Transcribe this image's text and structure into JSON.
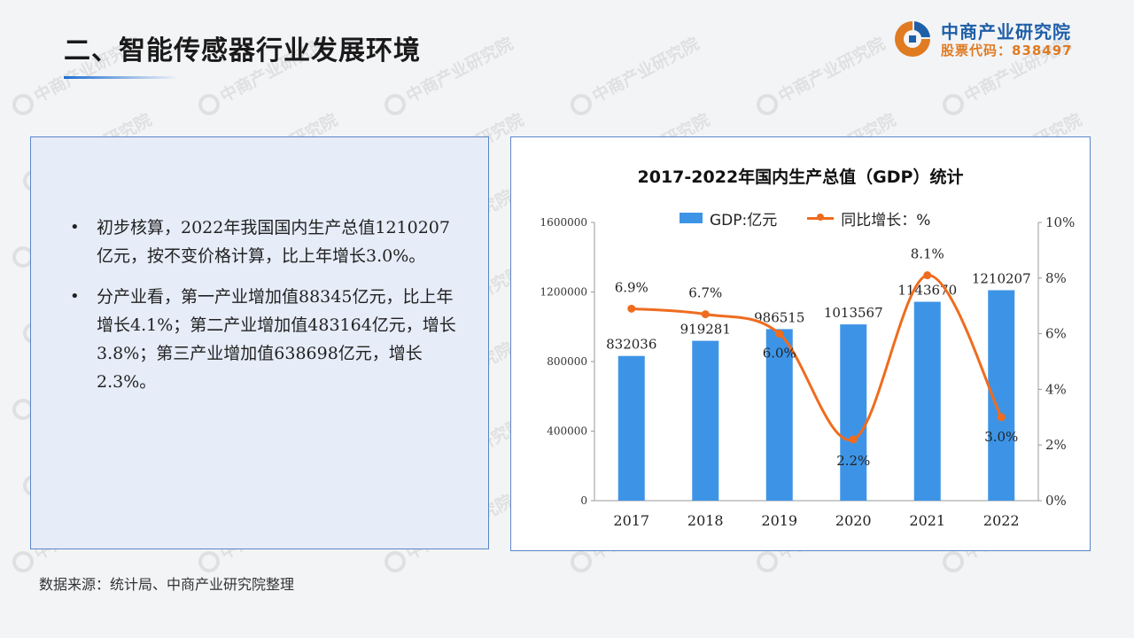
{
  "header": {
    "title": "二、智能传感器行业发展环境",
    "logo_name": "中商产业研究院",
    "logo_code": "股票代码：838497"
  },
  "bullets": [
    "初步核算，2022年我国国内生产总值1210207亿元，按不变价格计算，比上年增长3.0%。",
    "分产业看，第一产业增加值88345亿元，比上年增长4.1%；第二产业增加值483164亿元，增长3.8%；第三产业增加值638698亿元，增长2.3%。"
  ],
  "source": "数据来源：统计局、中商产业研究院整理",
  "watermark_text": "中商产业研究院",
  "colors": {
    "bar": "#3d94e6",
    "line": "#ef6c1e",
    "accent": "#1e6fd0",
    "logo_orange": "#e07b22",
    "logo_blue": "#1f5fa8"
  },
  "chart_data": {
    "type": "bar",
    "title": "2017-2022年国内生产总值（GDP）统计",
    "categories": [
      "2017",
      "2018",
      "2019",
      "2020",
      "2021",
      "2022"
    ],
    "series": [
      {
        "name": "GDP:亿元",
        "type": "bar",
        "axis": "left",
        "values": [
          832036,
          919281,
          986515,
          1013567,
          1143670,
          1210207
        ],
        "labels": [
          "832036",
          "919281",
          "986515",
          "1013567",
          "1143670",
          "1210207"
        ]
      },
      {
        "name": "同比增长：%",
        "type": "line",
        "axis": "right",
        "smooth": true,
        "values": [
          6.9,
          6.7,
          6.0,
          2.2,
          8.1,
          3.0
        ],
        "labels": [
          "6.9%",
          "6.7%",
          "6.0%",
          "2.2%",
          "8.1%",
          "3.0%"
        ]
      }
    ],
    "y_left": {
      "min": 0,
      "max": 1600000,
      "ticks": [
        0,
        400000,
        800000,
        1200000,
        1600000
      ]
    },
    "y_right": {
      "min": 0,
      "max": 10,
      "ticks": [
        "0%",
        "2%",
        "4%",
        "6%",
        "8%",
        "10%"
      ]
    },
    "grid": false,
    "legend_position": "top"
  }
}
